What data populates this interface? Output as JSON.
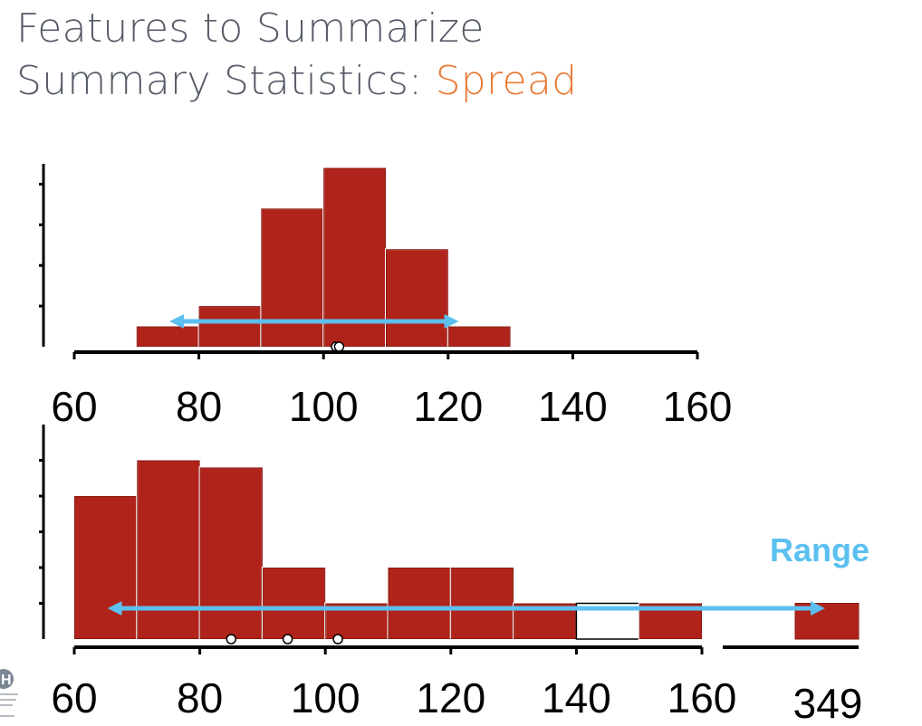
{
  "title": {
    "line1": "Features to Summarize",
    "line2_prefix": "Summary Statistics: ",
    "line2_accent": "Spread"
  },
  "colors": {
    "bar": "#b0231a",
    "arrow": "#5bc0f0",
    "accent": "#e87b36",
    "title": "#555b66"
  },
  "chart_data": [
    {
      "type": "bar",
      "bin_edges": [
        70,
        80,
        90,
        100,
        110,
        120,
        130
      ],
      "values": [
        0.5,
        1,
        3.4,
        4.4,
        2.4,
        0.5
      ],
      "x_ticks": [
        "60",
        "80",
        "100",
        "120",
        "140",
        "160"
      ],
      "x_tick_values": [
        60,
        80,
        100,
        120,
        140,
        160
      ],
      "xlim": [
        60,
        160
      ],
      "ylim": [
        0,
        4.5
      ],
      "y_ticks": [
        1,
        2,
        3,
        4
      ],
      "points": [
        102,
        102.5
      ],
      "arrow": [
        75,
        122
      ]
    },
    {
      "type": "bar",
      "bin_edges": [
        60,
        70,
        80,
        90,
        100,
        110,
        120,
        130,
        140,
        150,
        160
      ],
      "values": [
        4,
        5,
        4.8,
        2,
        1,
        2,
        2,
        1,
        1,
        1
      ],
      "hollow_bins": [
        8
      ],
      "outlier_bar": {
        "label": "349",
        "value": 1
      },
      "x_ticks": [
        "60",
        "80",
        "100",
        "120",
        "140",
        "160"
      ],
      "x_tick_values": [
        60,
        80,
        100,
        120,
        140,
        160
      ],
      "extra_tick_label": "349",
      "xlim": [
        60,
        160
      ],
      "ylim": [
        0,
        6
      ],
      "y_ticks": [
        1,
        2,
        3,
        4,
        5
      ],
      "points": [
        85,
        94,
        102
      ],
      "arrow": [
        65,
        349
      ],
      "annotation": "Range"
    }
  ]
}
